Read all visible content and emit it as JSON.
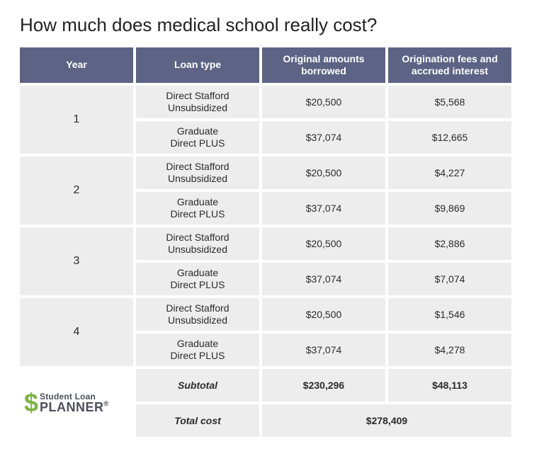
{
  "title": "How much does medical school really cost?",
  "headers": {
    "year": "Year",
    "loan_type": "Loan type",
    "original": "Original amounts borrowed",
    "fees": "Origination fees and accrued interest"
  },
  "loan_labels": {
    "stafford": "Direct Stafford\nUnsubsidized",
    "plus": "Graduate\nDirect PLUS"
  },
  "years": [
    {
      "year": "1",
      "stafford_orig": "$20,500",
      "stafford_fees": "$5,568",
      "plus_orig": "$37,074",
      "plus_fees": "$12,665"
    },
    {
      "year": "2",
      "stafford_orig": "$20,500",
      "stafford_fees": "$4,227",
      "plus_orig": "$37,074",
      "plus_fees": "$9,869"
    },
    {
      "year": "3",
      "stafford_orig": "$20,500",
      "stafford_fees": "$2,886",
      "plus_orig": "$37,074",
      "plus_fees": "$7,074"
    },
    {
      "year": "4",
      "stafford_orig": "$20,500",
      "stafford_fees": "$1,546",
      "plus_orig": "$37,074",
      "plus_fees": "$4,278"
    }
  ],
  "subtotal": {
    "label": "Subtotal",
    "original": "$230,296",
    "fees": "$48,113"
  },
  "total": {
    "label": "Total cost",
    "value": "$278,409"
  },
  "logo": {
    "line1": "Student Loan",
    "line2": "PLANNER",
    "symbol": "$",
    "reg": "®"
  },
  "colors": {
    "header_bg": "#5c6384",
    "cell_bg": "#ededed",
    "text": "#2b2b2b",
    "logo_green": "#7db446",
    "logo_gray": "#4a4f5a"
  }
}
